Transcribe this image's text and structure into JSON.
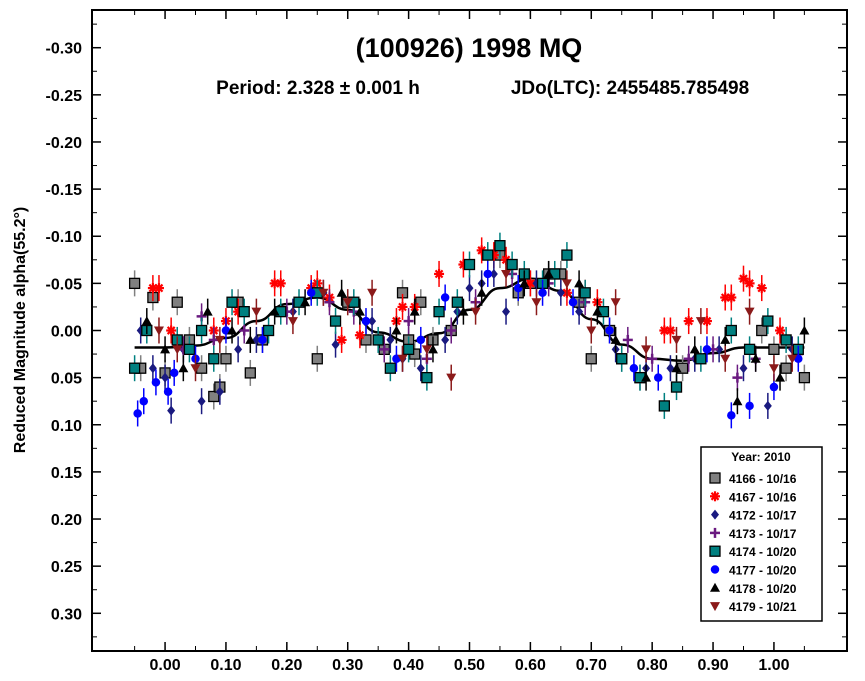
{
  "chart_data": {
    "type": "scatter",
    "title": "(100926) 1998 MQ",
    "period_text": "Period: 2.328 ± 0.001 h",
    "epoch_text": "JDo(LTC): 2455485.785498",
    "ylabel": "Reduced Magnitude alpha(55.2°)",
    "xlabel": "",
    "xlim": [
      -0.12,
      1.12
    ],
    "ylim": [
      -0.34,
      0.34
    ],
    "y_inverted": true,
    "x_ticks": [
      0.0,
      0.1,
      0.2,
      0.3,
      0.4,
      0.5,
      0.6,
      0.7,
      0.8,
      0.9,
      1.0
    ],
    "x_tick_labels": [
      "0.00",
      "0.10",
      "0.20",
      "0.30",
      "0.40",
      "0.50",
      "0.60",
      "0.70",
      "0.80",
      "0.90",
      "1.00"
    ],
    "y_ticks": [
      -0.3,
      -0.25,
      -0.2,
      -0.15,
      -0.1,
      -0.05,
      0.0,
      0.05,
      0.1,
      0.15,
      0.2,
      0.25,
      0.3
    ],
    "y_tick_labels": [
      "-0.30",
      "-0.25",
      "-0.20",
      "-0.15",
      "-0.10",
      "-0.05",
      "0.00",
      "0.05",
      "0.10",
      "0.15",
      "0.20",
      "0.25",
      "0.30"
    ],
    "legend": {
      "title": "Year: 2010",
      "placement": "bottom-right"
    },
    "fit_curve": {
      "x": [
        -0.05,
        0.0,
        0.05,
        0.1,
        0.15,
        0.2,
        0.25,
        0.3,
        0.35,
        0.4,
        0.45,
        0.5,
        0.55,
        0.6,
        0.65,
        0.7,
        0.75,
        0.8,
        0.85,
        0.9,
        0.95,
        1.0,
        1.05
      ],
      "y": [
        0.018,
        0.018,
        0.016,
        0.008,
        -0.01,
        -0.028,
        -0.035,
        -0.022,
        0.002,
        0.012,
        0.003,
        -0.022,
        -0.045,
        -0.055,
        -0.042,
        -0.012,
        0.015,
        0.03,
        0.032,
        0.024,
        0.018,
        0.018,
        0.018
      ]
    },
    "series": [
      {
        "name": "4166 - 10/16",
        "marker": "square",
        "color": "#808080",
        "x": [
          -0.05,
          -0.04,
          -0.02,
          0.0,
          0.02,
          0.04,
          0.06,
          0.08,
          0.09,
          0.1,
          0.12,
          0.14,
          0.16,
          0.25,
          0.3,
          0.33,
          0.36,
          0.39,
          0.4,
          0.41,
          0.42,
          0.44,
          0.47,
          0.55,
          0.58,
          0.6,
          0.63,
          0.65,
          0.68,
          0.7,
          0.73,
          0.75,
          0.78,
          0.85,
          0.98,
          1.0,
          1.02,
          1.05
        ],
        "y": [
          -0.05,
          0.04,
          -0.035,
          0.045,
          -0.03,
          0.01,
          0.04,
          0.07,
          0.06,
          0.03,
          -0.03,
          0.045,
          0.01,
          0.03,
          -0.03,
          0.01,
          0.02,
          -0.04,
          0.01,
          0.025,
          -0.03,
          0.01,
          0.0,
          -0.08,
          -0.04,
          -0.05,
          -0.06,
          -0.06,
          -0.03,
          0.03,
          0.0,
          0.03,
          0.05,
          0.04,
          0.0,
          0.02,
          0.04,
          0.05
        ]
      },
      {
        "name": "4167 - 10/16",
        "marker": "asterisk",
        "color": "#ff0000",
        "x": [
          -0.02,
          -0.01,
          0.01,
          0.08,
          0.1,
          0.12,
          0.18,
          0.19,
          0.24,
          0.25,
          0.27,
          0.29,
          0.32,
          0.38,
          0.39,
          0.41,
          0.45,
          0.49,
          0.52,
          0.54,
          0.56,
          0.6,
          0.66,
          0.69,
          0.71,
          0.82,
          0.83,
          0.86,
          0.89,
          0.92,
          0.93,
          0.95,
          0.96,
          0.98,
          1.01
        ],
        "y": [
          -0.045,
          -0.045,
          0.0,
          0.0,
          -0.01,
          -0.02,
          -0.05,
          -0.05,
          -0.045,
          -0.05,
          -0.035,
          0.01,
          0.005,
          -0.01,
          -0.025,
          -0.025,
          -0.06,
          -0.07,
          -0.085,
          -0.08,
          -0.075,
          -0.05,
          -0.04,
          -0.04,
          -0.03,
          0.0,
          0.0,
          -0.01,
          -0.01,
          -0.035,
          -0.035,
          -0.055,
          -0.05,
          -0.045,
          0.0
        ]
      },
      {
        "name": "4172 - 10/17",
        "marker": "diamond",
        "color": "#1a1a80",
        "x": [
          -0.04,
          -0.02,
          0.0,
          0.01,
          0.03,
          0.06,
          0.09,
          0.12,
          0.15,
          0.21,
          0.26,
          0.28,
          0.34,
          0.37,
          0.39,
          0.42,
          0.46,
          0.48,
          0.5,
          0.52,
          0.54,
          0.56,
          0.61,
          0.65,
          0.68,
          0.74,
          0.79,
          0.83,
          0.87,
          0.91,
          0.95,
          0.99,
          1.03
        ],
        "y": [
          0.0,
          0.04,
          0.05,
          0.085,
          0.02,
          0.075,
          0.065,
          0.02,
          0.01,
          -0.02,
          -0.04,
          0.015,
          -0.01,
          0.01,
          0.03,
          0.04,
          0.01,
          -0.02,
          -0.045,
          -0.05,
          -0.06,
          -0.02,
          -0.05,
          -0.04,
          -0.02,
          0.02,
          0.04,
          0.04,
          0.03,
          0.02,
          0.04,
          0.08,
          0.02
        ]
      },
      {
        "name": "4173 - 10/17",
        "marker": "plus",
        "color": "#6a1a80",
        "x": [
          0.03,
          0.06,
          0.08,
          0.13,
          0.2,
          0.27,
          0.31,
          0.36,
          0.4,
          0.43,
          0.47,
          0.51,
          0.57,
          0.63,
          0.69,
          0.76,
          0.8,
          0.86,
          0.9,
          0.94,
          0.97,
          1.04
        ],
        "y": [
          0.02,
          -0.015,
          0.01,
          0.0,
          -0.02,
          -0.03,
          -0.02,
          0.02,
          -0.01,
          0.03,
          0.0,
          -0.03,
          -0.06,
          -0.05,
          -0.03,
          0.01,
          0.03,
          0.03,
          0.02,
          0.05,
          0.03,
          0.025
        ]
      },
      {
        "name": "4174 - 10/20",
        "marker": "square",
        "color": "#008080",
        "x": [
          -0.05,
          -0.03,
          0.02,
          0.04,
          0.06,
          0.08,
          0.11,
          0.13,
          0.17,
          0.19,
          0.22,
          0.25,
          0.28,
          0.31,
          0.35,
          0.37,
          0.4,
          0.43,
          0.45,
          0.48,
          0.5,
          0.53,
          0.55,
          0.57,
          0.59,
          0.62,
          0.64,
          0.66,
          0.69,
          0.72,
          0.75,
          0.78,
          0.82,
          0.84,
          0.88,
          0.93,
          0.96,
          0.99,
          1.02,
          1.04
        ],
        "y": [
          0.04,
          0.0,
          0.01,
          0.02,
          0.0,
          0.03,
          -0.03,
          -0.02,
          0.0,
          -0.02,
          -0.03,
          -0.04,
          -0.01,
          -0.03,
          0.01,
          0.04,
          0.02,
          0.05,
          -0.02,
          -0.03,
          -0.07,
          -0.08,
          -0.09,
          -0.07,
          -0.06,
          -0.05,
          -0.06,
          -0.08,
          -0.04,
          -0.02,
          0.03,
          0.05,
          0.08,
          0.06,
          0.03,
          0.0,
          0.02,
          -0.01,
          0.01,
          0.02
        ]
      },
      {
        "name": "4177 - 10/20",
        "marker": "circle",
        "color": "#0000ff",
        "x": [
          -0.045,
          -0.035,
          -0.015,
          0.005,
          0.015,
          0.05,
          0.1,
          0.16,
          0.24,
          0.33,
          0.38,
          0.42,
          0.46,
          0.53,
          0.58,
          0.62,
          0.67,
          0.73,
          0.77,
          0.81,
          0.89,
          0.93,
          0.96,
          1.0,
          1.04
        ],
        "y": [
          0.088,
          0.075,
          0.055,
          0.065,
          0.045,
          0.03,
          0.0,
          0.01,
          -0.04,
          -0.01,
          0.03,
          0.01,
          -0.035,
          -0.06,
          -0.045,
          -0.04,
          -0.03,
          0.0,
          0.04,
          0.05,
          0.02,
          0.09,
          0.08,
          0.06,
          0.03
        ]
      },
      {
        "name": "4178 - 10/20",
        "marker": "triangle-up",
        "color": "#000000",
        "x": [
          -0.03,
          0.0,
          0.03,
          0.07,
          0.11,
          0.14,
          0.18,
          0.23,
          0.29,
          0.32,
          0.38,
          0.41,
          0.44,
          0.49,
          0.52,
          0.59,
          0.63,
          0.68,
          0.71,
          0.74,
          0.79,
          0.84,
          0.87,
          0.92,
          0.94,
          0.97,
          1.01,
          1.05
        ],
        "y": [
          -0.01,
          0.02,
          0.04,
          -0.02,
          0.0,
          0.01,
          -0.02,
          -0.03,
          -0.04,
          -0.02,
          0.0,
          -0.02,
          0.02,
          -0.02,
          -0.04,
          -0.05,
          -0.06,
          -0.05,
          -0.02,
          0.01,
          0.05,
          0.04,
          0.02,
          0.01,
          0.075,
          0.03,
          0.05,
          0.0
        ]
      },
      {
        "name": "4179 - 10/21",
        "marker": "triangle-down",
        "color": "#8b1a1a",
        "x": [
          -0.01,
          0.02,
          0.05,
          0.09,
          0.15,
          0.21,
          0.26,
          0.3,
          0.34,
          0.39,
          0.43,
          0.47,
          0.51,
          0.56,
          0.61,
          0.66,
          0.7,
          0.74,
          0.79,
          0.84,
          0.88,
          0.92,
          0.96,
          1.0,
          1.03
        ],
        "y": [
          0.0,
          0.02,
          0.04,
          0.01,
          -0.02,
          -0.01,
          -0.04,
          -0.03,
          -0.04,
          0.03,
          0.02,
          0.05,
          -0.02,
          -0.06,
          -0.03,
          -0.05,
          0.0,
          -0.03,
          0.02,
          0.01,
          -0.01,
          0.03,
          -0.02,
          0.04,
          0.03
        ]
      }
    ]
  }
}
